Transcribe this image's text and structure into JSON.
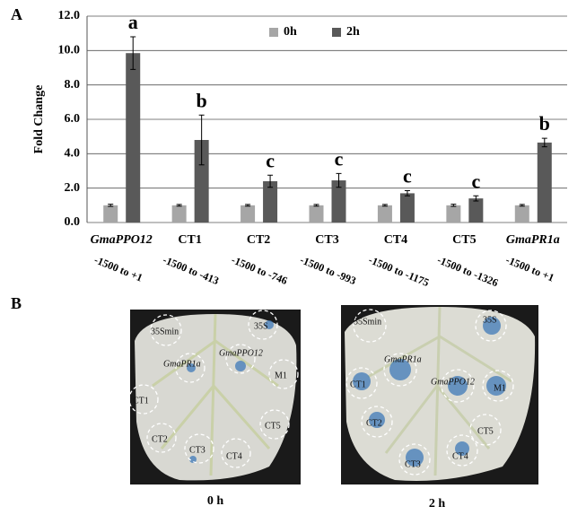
{
  "panel_a_label": "A",
  "panel_b_label": "B",
  "chart_data": {
    "type": "bar",
    "y_label": "Fold  Change",
    "categories": [
      "GmaPPO12",
      "CT1",
      "CT2",
      "CT3",
      "CT4",
      "CT5",
      "GmaPR1a"
    ],
    "category_italic": [
      true,
      false,
      false,
      false,
      false,
      false,
      true
    ],
    "category_ranges": [
      "-1500 to +1",
      "-1500 to -413",
      "-1500 to -746",
      "-1500 to -993",
      "-1500 to -1175",
      "-1500 to -1326",
      "-1500 to +1"
    ],
    "series": [
      {
        "name": "0h",
        "color": "#a6a6a6",
        "values": [
          1.0,
          1.0,
          1.0,
          1.0,
          1.0,
          1.0,
          1.0
        ],
        "errors": [
          0.06,
          0.05,
          0.05,
          0.05,
          0.05,
          0.06,
          0.05
        ]
      },
      {
        "name": "2h",
        "color": "#595959",
        "values": [
          9.85,
          4.8,
          2.4,
          2.45,
          1.7,
          1.4,
          4.65
        ],
        "errors": [
          0.95,
          1.45,
          0.35,
          0.4,
          0.15,
          0.15,
          0.25
        ]
      }
    ],
    "significance_letters": [
      "a",
      "b",
      "c",
      "c",
      "c",
      "c",
      "b"
    ],
    "ylim": [
      0,
      12
    ],
    "yticks": [
      {
        "value": 0,
        "label": "0.0"
      },
      {
        "value": 2,
        "label": "2.0"
      },
      {
        "value": 4,
        "label": "4.0"
      },
      {
        "value": 6,
        "label": "6.0"
      },
      {
        "value": 8,
        "label": "8.0"
      },
      {
        "value": 10,
        "label": "10.0"
      },
      {
        "value": 12,
        "label": "12.0"
      }
    ],
    "grid": true
  },
  "panel_b": {
    "images": [
      {
        "caption": "0  h",
        "spots": [
          "35Smin",
          "35S",
          "GmaPR1a",
          "GmaPPO12",
          "CT1",
          "M1",
          "CT5",
          "CT2",
          "CT3",
          "CT4"
        ]
      },
      {
        "caption": "2  h",
        "spots": [
          "35Smin",
          "35S",
          "GmaPR1a",
          "GmaPPO12",
          "CT1",
          "M1",
          "CT5",
          "CT2",
          "CT3",
          "CT4"
        ]
      }
    ]
  }
}
